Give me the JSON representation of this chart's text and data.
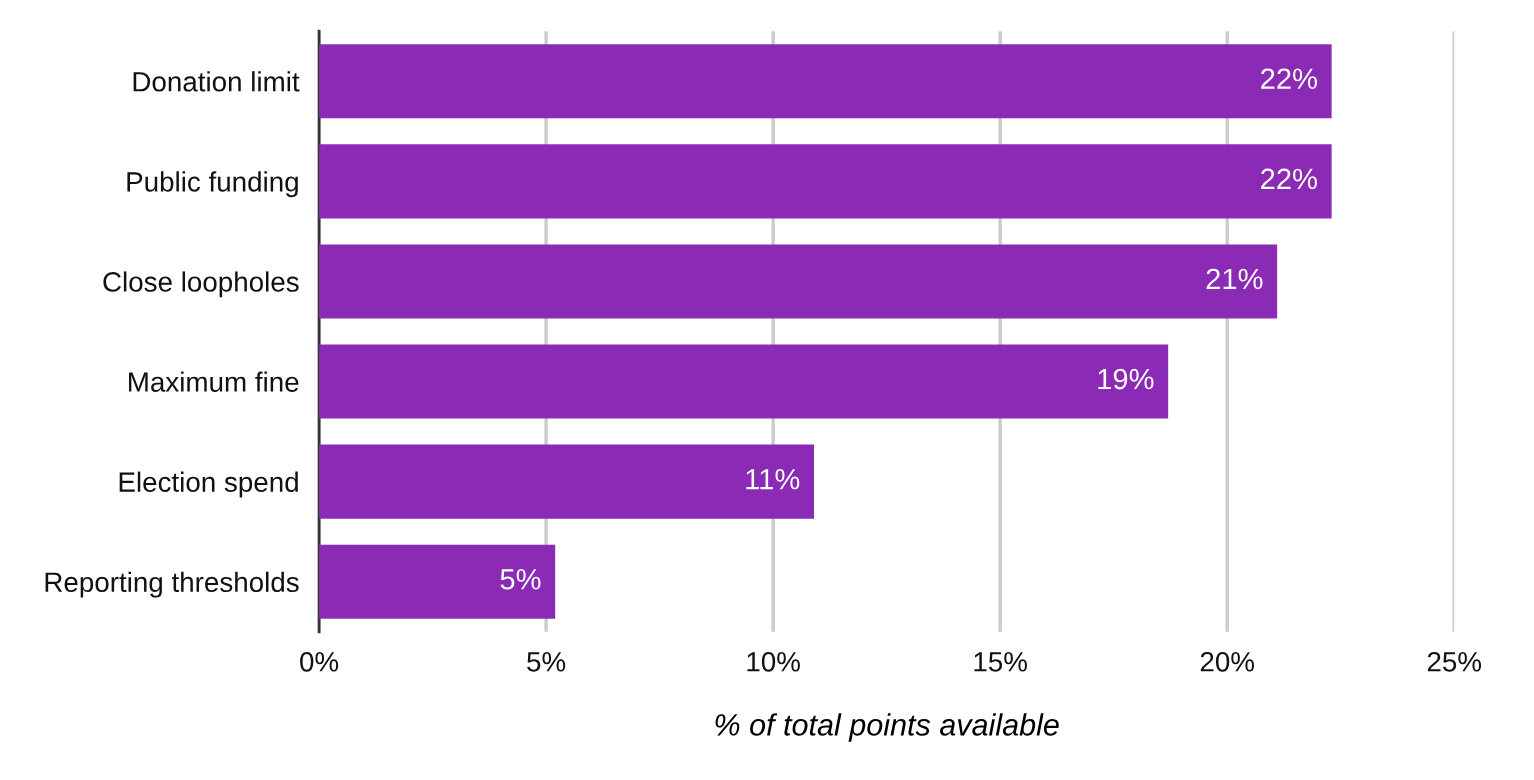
{
  "chart_data": {
    "type": "bar",
    "orientation": "horizontal",
    "categories": [
      "Donation limit",
      "Public funding",
      "Close loopholes",
      "Maximum fine",
      "Election spend",
      "Reporting thresholds"
    ],
    "values": [
      22.3,
      22.3,
      21.1,
      18.7,
      10.9,
      5.2
    ],
    "value_labels": [
      "22%",
      "22%",
      "21%",
      "19%",
      "11%",
      "5%"
    ],
    "color": "#8b2ab4",
    "xlabel": "% of total points available",
    "xlim": [
      0,
      25
    ],
    "xticks": [
      {
        "value": 0,
        "label": "0%"
      },
      {
        "value": 5,
        "label": "5%"
      },
      {
        "value": 10,
        "label": "10%"
      },
      {
        "value": 15,
        "label": "15%"
      },
      {
        "value": 20,
        "label": "20%"
      },
      {
        "value": 25,
        "label": "25%"
      }
    ],
    "grid": "x"
  }
}
